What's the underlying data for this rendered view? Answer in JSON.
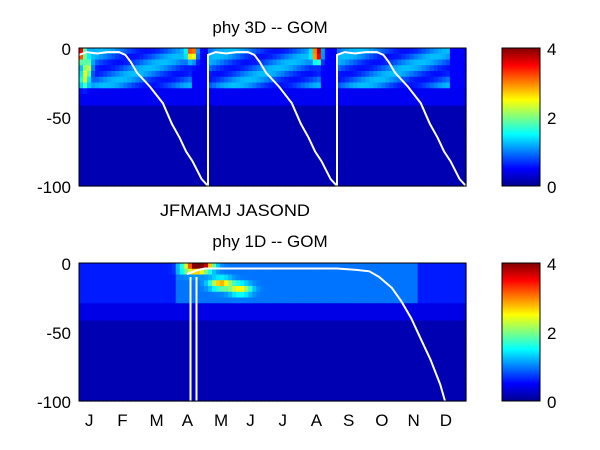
{
  "chart_data": [
    {
      "type": "heatmap",
      "title": "phy 3D   -- GOM",
      "xlabel": "",
      "ylabel": "",
      "ylim": [
        -100,
        0
      ],
      "y_ticks": [
        "0",
        "-50",
        "-100"
      ],
      "x_ticks_text": "JFMAMJ JASOND",
      "colorbar": {
        "range": [
          0,
          4
        ],
        "ticks": [
          "4",
          "2",
          "0"
        ]
      },
      "colormap": [
        "#00008f",
        "#0000ff",
        "#0080ff",
        "#00ffff",
        "#80ff80",
        "#ffff00",
        "#ff8000",
        "#ff0000",
        "#800000"
      ],
      "background_value": 0.2,
      "surface_layer_depth": -30,
      "annual_cycles": 3,
      "mixed_layer_line_color": "#ffffff",
      "mixed_layer_depth": {
        "t": [
          0,
          0.06,
          0.14,
          0.22,
          0.31,
          0.36,
          0.4,
          0.45,
          0.55,
          0.65,
          0.72,
          0.78,
          0.83,
          0.88,
          0.95,
          1.0
        ],
        "depth": [
          -5,
          -3,
          -4,
          -3,
          -3,
          -5,
          -10,
          -18,
          -28,
          -40,
          -55,
          -65,
          -75,
          -82,
          -95,
          -100
        ]
      },
      "hotspots": [
        {
          "t": 0.01,
          "depth": -3,
          "value": 3.6
        },
        {
          "t": 0.04,
          "depth": -22,
          "value": 2.6
        },
        {
          "t": 0.07,
          "depth": -15,
          "value": 2.4
        },
        {
          "t": 0.88,
          "depth": -3,
          "value": 3.8
        },
        {
          "t": 1.85,
          "depth": -4,
          "value": 3.9
        }
      ]
    },
    {
      "type": "heatmap",
      "title": "phy 1D   -- GOM",
      "xlabel": "",
      "ylabel": "",
      "ylim": [
        -100,
        0
      ],
      "y_ticks": [
        "0",
        "-50",
        "-100"
      ],
      "x_ticks": [
        "J",
        "F",
        "M",
        "A",
        "M",
        "J",
        "J",
        "A",
        "S",
        "O",
        "N",
        "D"
      ],
      "colorbar": {
        "range": [
          0,
          4
        ],
        "ticks": [
          "4",
          "2",
          "0"
        ]
      },
      "background_value": 0.2,
      "surface_layer_depth": -30,
      "mixed_layer_line_color": "#ffffff",
      "mixed_layer_depth": {
        "month": [
          3.35,
          3.7,
          3.9,
          4.5,
          5.2,
          6.0,
          7.0,
          8.0,
          8.6,
          9.0,
          9.3,
          9.7,
          10.0,
          10.3,
          10.6,
          10.9,
          11.2,
          11.35
        ],
        "depth": [
          -8,
          -5,
          -4,
          -4,
          -4,
          -4,
          -4,
          -4,
          -5,
          -6,
          -10,
          -18,
          -28,
          -40,
          -55,
          -70,
          -88,
          -100
        ]
      },
      "deep_mixing_month": 3.55,
      "hotspots": [
        {
          "month": 3.8,
          "depth": -2,
          "value": 3.9
        },
        {
          "month": 3.5,
          "depth": -4,
          "value": 2.5
        },
        {
          "month": 4.4,
          "depth": -15,
          "value": 2.8
        },
        {
          "month": 5.0,
          "depth": -19,
          "value": 2.5
        }
      ]
    }
  ]
}
